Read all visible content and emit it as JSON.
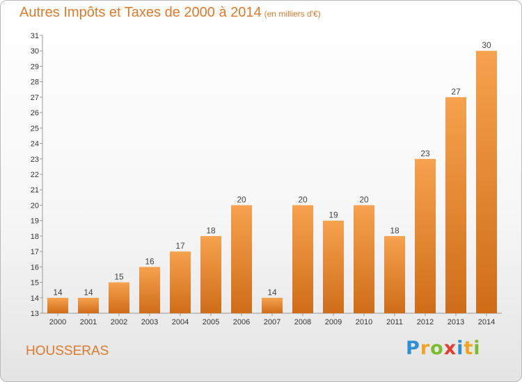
{
  "title": "Autres Impôts et Taxes de 2000 à 2014",
  "subtitle": "(en milliers d'€)",
  "commune": "HOUSSERAS",
  "logo": {
    "letters": [
      "P",
      "r",
      "o",
      "x",
      "i",
      "t",
      "i"
    ],
    "colors": [
      "#2e8fd6",
      "#f3a321",
      "#7bbd2c",
      "#e53b2f",
      "#2e8fd6",
      "#f3a321",
      "#7bbd2c"
    ]
  },
  "colors": {
    "title": "#e07a2a",
    "bar_top": "#f6a24e",
    "bar_bottom": "#cf6d18"
  },
  "chart_data": {
    "type": "bar",
    "categories": [
      "2000",
      "2001",
      "2002",
      "2003",
      "2004",
      "2005",
      "2006",
      "2007",
      "2008",
      "2009",
      "2010",
      "2011",
      "2012",
      "2013",
      "2014"
    ],
    "values": [
      14,
      14,
      15,
      16,
      17,
      18,
      20,
      14,
      20,
      19,
      20,
      18,
      23,
      27,
      30
    ],
    "ylim": [
      13,
      31
    ],
    "yticks": [
      13,
      14,
      15,
      16,
      17,
      18,
      19,
      20,
      21,
      22,
      23,
      24,
      25,
      26,
      27,
      28,
      29,
      30,
      31
    ],
    "xlabel": "",
    "ylabel": "",
    "grid": false,
    "data_labels": true
  }
}
